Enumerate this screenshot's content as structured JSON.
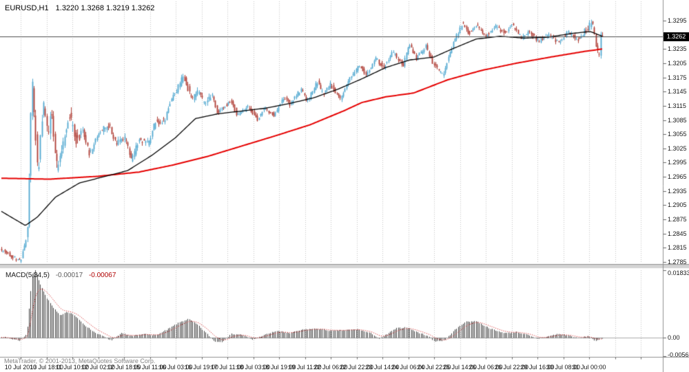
{
  "header": {
    "symbol_timeframe": "EURUSD,H1",
    "ohlc_text": "1.3220 1.3268 1.3219 1.3262"
  },
  "current_price_badge": "1.3262",
  "price_axis": {
    "labels": [
      "1.3295",
      "1.3265",
      "1.3235",
      "1.3205",
      "1.3175",
      "1.3145",
      "1.3115",
      "1.3085",
      "1.3055",
      "1.3025",
      "1.2995",
      "1.2965",
      "1.2935",
      "1.2905",
      "1.2875",
      "1.2845",
      "1.2815",
      "1.2785"
    ]
  },
  "macd_panel": {
    "label": "MACD(5,34,5)",
    "value_main": "-0.00017",
    "value_signal": "-0.00067",
    "axis_labels": [
      "0.01833",
      "0.00",
      "-0.00565"
    ]
  },
  "time_axis": {
    "labels": [
      "10 Jul 2013",
      "10 Jul 18:00",
      "11 Jul 10:00",
      "12 Jul 02:00",
      "12 Jul 18:00",
      "15 Jul 11:00",
      "16 Jul 03:00",
      "16 Jul 19:00",
      "17 Jul 11:00",
      "18 Jul 03:00",
      "18 Jul 19:00",
      "19 Jul 11:00",
      "22 Jul 06:00",
      "22 Jul 22:00",
      "23 Jul 14:00",
      "24 Jul 06:00",
      "24 Jul 22:00",
      "25 Jul 14:00",
      "26 Jul 06:00",
      "26 Jul 22:00",
      "29 Jul 16:00",
      "30 Jul 08:00",
      "31 Jul 00:00"
    ]
  },
  "footer": {
    "copyright": "MetaTrader, © 2001-2013, MetaQuotes Software Corp."
  },
  "chart_data": {
    "type": "candlestick",
    "symbol": "EURUSD",
    "timeframe": "H1",
    "ohlc_current": {
      "open": 1.322,
      "high": 1.3268,
      "low": 1.3219,
      "close": 1.3262
    },
    "axis": {
      "top_tick": 1.3295,
      "bottom_tick": 1.2785,
      "tick_step": 0.003
    },
    "colors": {
      "bull": "#4fa7d0",
      "bear": "#ae3b32",
      "ma_fast": "#000000",
      "ma_slow": "#e60000",
      "macd_hist": "#3f3f3f",
      "macd_signal": "#cc0000",
      "grid": "#c4c4c4"
    },
    "price_path": [
      [
        0.0,
        1.2812
      ],
      [
        0.017,
        1.28
      ],
      [
        0.034,
        1.2786
      ],
      [
        0.046,
        1.285
      ],
      [
        0.053,
        1.3175
      ],
      [
        0.063,
        1.2965
      ],
      [
        0.072,
        1.3125
      ],
      [
        0.079,
        1.3055
      ],
      [
        0.086,
        1.3105
      ],
      [
        0.094,
        1.2985
      ],
      [
        0.104,
        1.303
      ],
      [
        0.115,
        1.31
      ],
      [
        0.126,
        1.304
      ],
      [
        0.137,
        1.3065
      ],
      [
        0.149,
        1.3012
      ],
      [
        0.165,
        1.306
      ],
      [
        0.182,
        1.3075
      ],
      [
        0.192,
        1.3035
      ],
      [
        0.209,
        1.3045
      ],
      [
        0.219,
        1.2997
      ],
      [
        0.231,
        1.3045
      ],
      [
        0.247,
        1.3035
      ],
      [
        0.258,
        1.308
      ],
      [
        0.274,
        1.3085
      ],
      [
        0.286,
        1.313
      ],
      [
        0.297,
        1.3155
      ],
      [
        0.305,
        1.3178
      ],
      [
        0.319,
        1.313
      ],
      [
        0.33,
        1.3148
      ],
      [
        0.341,
        1.3115
      ],
      [
        0.352,
        1.314
      ],
      [
        0.362,
        1.31
      ],
      [
        0.385,
        1.3125
      ],
      [
        0.395,
        1.3095
      ],
      [
        0.413,
        1.3112
      ],
      [
        0.429,
        1.3085
      ],
      [
        0.44,
        1.311
      ],
      [
        0.456,
        1.3095
      ],
      [
        0.473,
        1.3135
      ],
      [
        0.483,
        1.3118
      ],
      [
        0.501,
        1.315
      ],
      [
        0.511,
        1.3125
      ],
      [
        0.528,
        1.3165
      ],
      [
        0.538,
        1.314
      ],
      [
        0.55,
        1.316
      ],
      [
        0.566,
        1.313
      ],
      [
        0.583,
        1.3175
      ],
      [
        0.599,
        1.32
      ],
      [
        0.61,
        1.318
      ],
      [
        0.626,
        1.3215
      ],
      [
        0.638,
        1.3195
      ],
      [
        0.654,
        1.3228
      ],
      [
        0.671,
        1.32
      ],
      [
        0.681,
        1.3245
      ],
      [
        0.693,
        1.3215
      ],
      [
        0.709,
        1.324
      ],
      [
        0.72,
        1.3205
      ],
      [
        0.737,
        1.318
      ],
      [
        0.754,
        1.3245
      ],
      [
        0.769,
        1.329
      ],
      [
        0.781,
        1.3268
      ],
      [
        0.792,
        1.3288
      ],
      [
        0.808,
        1.3262
      ],
      [
        0.824,
        1.3283
      ],
      [
        0.841,
        1.3268
      ],
      [
        0.851,
        1.3288
      ],
      [
        0.869,
        1.3258
      ],
      [
        0.88,
        1.3276
      ],
      [
        0.896,
        1.325
      ],
      [
        0.912,
        1.3266
      ],
      [
        0.929,
        1.3248
      ],
      [
        0.945,
        1.327
      ],
      [
        0.962,
        1.3256
      ],
      [
        0.978,
        1.3278
      ],
      [
        0.985,
        1.3298
      ],
      [
        0.992,
        1.324
      ],
      [
        0.997,
        1.3222
      ],
      [
        1.0,
        1.3262
      ]
    ],
    "ma_fast_black": [
      [
        0.0,
        1.2892
      ],
      [
        0.04,
        1.2862
      ],
      [
        0.06,
        1.288
      ],
      [
        0.09,
        1.2922
      ],
      [
        0.13,
        1.2952
      ],
      [
        0.17,
        1.2965
      ],
      [
        0.21,
        1.2978
      ],
      [
        0.25,
        1.301
      ],
      [
        0.29,
        1.3048
      ],
      [
        0.323,
        1.3088
      ],
      [
        0.36,
        1.3098
      ],
      [
        0.4,
        1.3104
      ],
      [
        0.44,
        1.311
      ],
      [
        0.48,
        1.312
      ],
      [
        0.52,
        1.3132
      ],
      [
        0.56,
        1.315
      ],
      [
        0.6,
        1.3172
      ],
      [
        0.64,
        1.3196
      ],
      [
        0.68,
        1.3212
      ],
      [
        0.72,
        1.3218
      ],
      [
        0.75,
        1.3235
      ],
      [
        0.79,
        1.3256
      ],
      [
        0.83,
        1.3262
      ],
      [
        0.87,
        1.3258
      ],
      [
        0.91,
        1.326
      ],
      [
        0.95,
        1.3268
      ],
      [
        0.98,
        1.3272
      ],
      [
        1.0,
        1.3262
      ]
    ],
    "ma_slow_red": [
      [
        0.0,
        1.2962
      ],
      [
        0.08,
        1.296
      ],
      [
        0.16,
        1.2966
      ],
      [
        0.229,
        1.2975
      ],
      [
        0.286,
        1.299
      ],
      [
        0.343,
        1.3008
      ],
      [
        0.4,
        1.303
      ],
      [
        0.457,
        1.3052
      ],
      [
        0.514,
        1.3075
      ],
      [
        0.571,
        1.3105
      ],
      [
        0.6,
        1.3122
      ],
      [
        0.64,
        1.3134
      ],
      [
        0.686,
        1.3142
      ],
      [
        0.743,
        1.317
      ],
      [
        0.8,
        1.319
      ],
      [
        0.857,
        1.3205
      ],
      [
        0.914,
        1.3218
      ],
      [
        0.971,
        1.323
      ],
      [
        1.0,
        1.3235
      ]
    ],
    "macd": {
      "label": "MACD(5,34,5)",
      "main_value": -0.00017,
      "signal_value": -0.00067,
      "max_value": 0.01833,
      "min_value": -0.00565,
      "path": [
        [
          0.0,
          0.0002
        ],
        [
          0.03,
          -0.0008
        ],
        [
          0.042,
          0.001
        ],
        [
          0.051,
          0.017
        ],
        [
          0.057,
          0.0183
        ],
        [
          0.063,
          0.015
        ],
        [
          0.074,
          0.011
        ],
        [
          0.086,
          0.008
        ],
        [
          0.097,
          0.006
        ],
        [
          0.109,
          0.007
        ],
        [
          0.12,
          0.0062
        ],
        [
          0.137,
          0.0035
        ],
        [
          0.154,
          0.0015
        ],
        [
          0.171,
          0.0002
        ],
        [
          0.183,
          -0.0008
        ],
        [
          0.2,
          0.0012
        ],
        [
          0.217,
          0.0004
        ],
        [
          0.24,
          0.001
        ],
        [
          0.257,
          0.0006
        ],
        [
          0.274,
          0.002
        ],
        [
          0.297,
          0.0042
        ],
        [
          0.311,
          0.005
        ],
        [
          0.326,
          0.0035
        ],
        [
          0.343,
          0.0008
        ],
        [
          0.354,
          -0.001
        ],
        [
          0.366,
          -0.0012
        ],
        [
          0.383,
          0.001
        ],
        [
          0.4,
          0.0008
        ],
        [
          0.417,
          -0.0006
        ],
        [
          0.434,
          0.0005
        ],
        [
          0.457,
          0.0018
        ],
        [
          0.48,
          0.0012
        ],
        [
          0.503,
          0.0022
        ],
        [
          0.526,
          0.0024
        ],
        [
          0.549,
          0.0018
        ],
        [
          0.571,
          0.002
        ],
        [
          0.594,
          0.0022
        ],
        [
          0.617,
          0.001
        ],
        [
          0.629,
          -0.0004
        ],
        [
          0.64,
          0.0008
        ],
        [
          0.657,
          0.0025
        ],
        [
          0.674,
          0.0028
        ],
        [
          0.691,
          0.0015
        ],
        [
          0.709,
          0.0005
        ],
        [
          0.72,
          -0.001
        ],
        [
          0.737,
          -0.0008
        ],
        [
          0.754,
          0.002
        ],
        [
          0.771,
          0.0042
        ],
        [
          0.789,
          0.0045
        ],
        [
          0.806,
          0.003
        ],
        [
          0.823,
          0.0018
        ],
        [
          0.84,
          0.0012
        ],
        [
          0.857,
          0.0015
        ],
        [
          0.874,
          0.0008
        ],
        [
          0.891,
          -0.0004
        ],
        [
          0.909,
          0.0003
        ],
        [
          0.926,
          0.001
        ],
        [
          0.943,
          0.0006
        ],
        [
          0.96,
          -0.0002
        ],
        [
          0.977,
          0.0004
        ],
        [
          0.989,
          -0.001
        ],
        [
          1.0,
          -0.0002
        ]
      ]
    }
  }
}
